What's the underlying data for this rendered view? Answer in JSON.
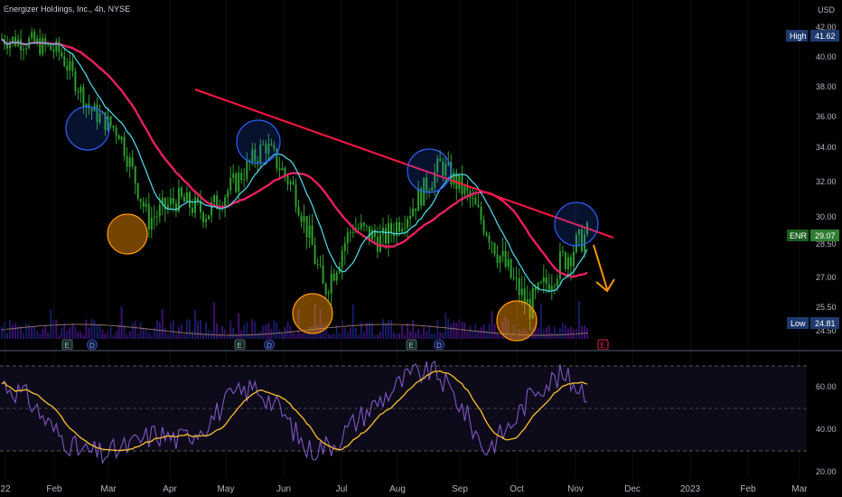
{
  "header": {
    "symbol_title": "Energizer Holdings, Inc., 4h, NYSE",
    "currency": "USD"
  },
  "colors": {
    "background": "#000000",
    "up_candle": "#26a69a",
    "candle_green": "#2e9e2e",
    "trendline": "#ff1744",
    "ma_long": "#e91e63",
    "ma_short": "#4dd0e1",
    "blue_circle": "#2962ff",
    "orange_circle": "#ff9800",
    "rsi_line": "#7e57c2",
    "rsi_ma": "#fbc02d",
    "arrow": "#ff9800"
  },
  "chart_data": [
    {
      "type": "line",
      "panel": "price",
      "y_ticks": [
        "42.00",
        "40.00",
        "38.00",
        "36.00",
        "34.00",
        "32.00",
        "30.00",
        "28.50",
        "27.00",
        "25.50",
        "24.50"
      ],
      "y_tick_values": [
        42,
        40,
        38,
        36,
        34,
        32,
        30,
        28.5,
        27,
        25.5,
        24.5
      ],
      "x_ticks": [
        "22",
        "Feb",
        "Mar",
        "Apr",
        "May",
        "Jun",
        "Jul",
        "Aug",
        "Sep",
        "Oct",
        "Nov",
        "Dec",
        "2023",
        "Feb",
        "Mar"
      ],
      "labels": {
        "high": {
          "name": "High",
          "value": "41.62"
        },
        "last": {
          "name": "ENR",
          "value": "29.07"
        },
        "low": {
          "name": "Low",
          "value": "24.81"
        }
      },
      "price_series": {
        "name": "ENR",
        "x": [
          "Jan",
          "Jan",
          "Feb",
          "Feb",
          "Mar",
          "Mar",
          "Apr",
          "Apr",
          "May",
          "May",
          "Jun",
          "Jun",
          "Jul",
          "Jul",
          "Aug",
          "Aug",
          "Sep",
          "Sep",
          "Oct",
          "Oct",
          "Nov"
        ],
        "values": [
          41.2,
          41.0,
          40.3,
          36.5,
          35.0,
          29.8,
          31.0,
          30.2,
          32.0,
          34.2,
          31.5,
          26.3,
          29.5,
          28.7,
          30.5,
          33.0,
          31.0,
          28.0,
          25.5,
          27.5,
          29.07
        ]
      },
      "events": [
        "E",
        "D",
        "E",
        "D",
        "E",
        "D",
        "E"
      ],
      "annotations": [
        "descending trendline",
        "resistance touches (blue circles)",
        "support touches (orange circles)",
        "projected down arrow"
      ]
    },
    {
      "type": "line",
      "panel": "rsi",
      "y_ticks": [
        "60.00",
        "40.00",
        "20.00"
      ],
      "y_tick_values": [
        60,
        40,
        20
      ],
      "levels": [
        70,
        50,
        30
      ],
      "series": [
        {
          "values": [
            62,
            55,
            40,
            30,
            28,
            32,
            38,
            35,
            42,
            55,
            60,
            48,
            30,
            33,
            45,
            55,
            65,
            68,
            52,
            30,
            42,
            60,
            65,
            58
          ]
        }
      ]
    }
  ]
}
